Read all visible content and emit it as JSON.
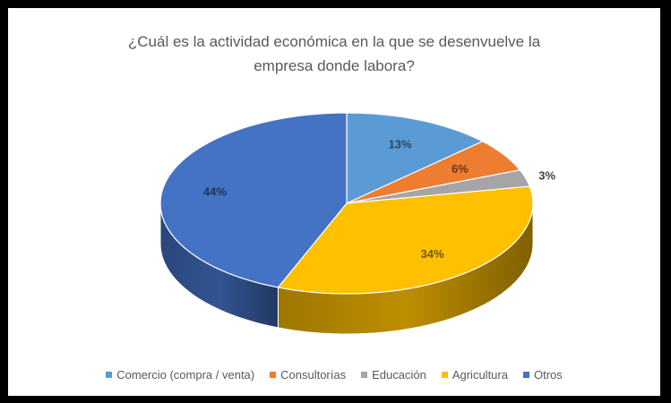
{
  "chart_data": {
    "type": "pie",
    "title_lines": [
      "¿Cuál es la actividad económica en la que se desenvuelve la",
      "empresa donde labora?"
    ],
    "categories": [
      "Comercio (compra / venta)",
      "Consultorías",
      "Educación",
      "Agricultura",
      "Otros"
    ],
    "values": [
      13,
      6,
      3,
      34,
      44
    ],
    "labels": [
      "13%",
      "6%",
      "3%",
      "34%",
      "44%"
    ],
    "colors": [
      "#5B9BD5",
      "#ED7D31",
      "#A5A5A5",
      "#FFC000",
      "#4472C4"
    ],
    "legend_position": "bottom",
    "style": "3d"
  }
}
